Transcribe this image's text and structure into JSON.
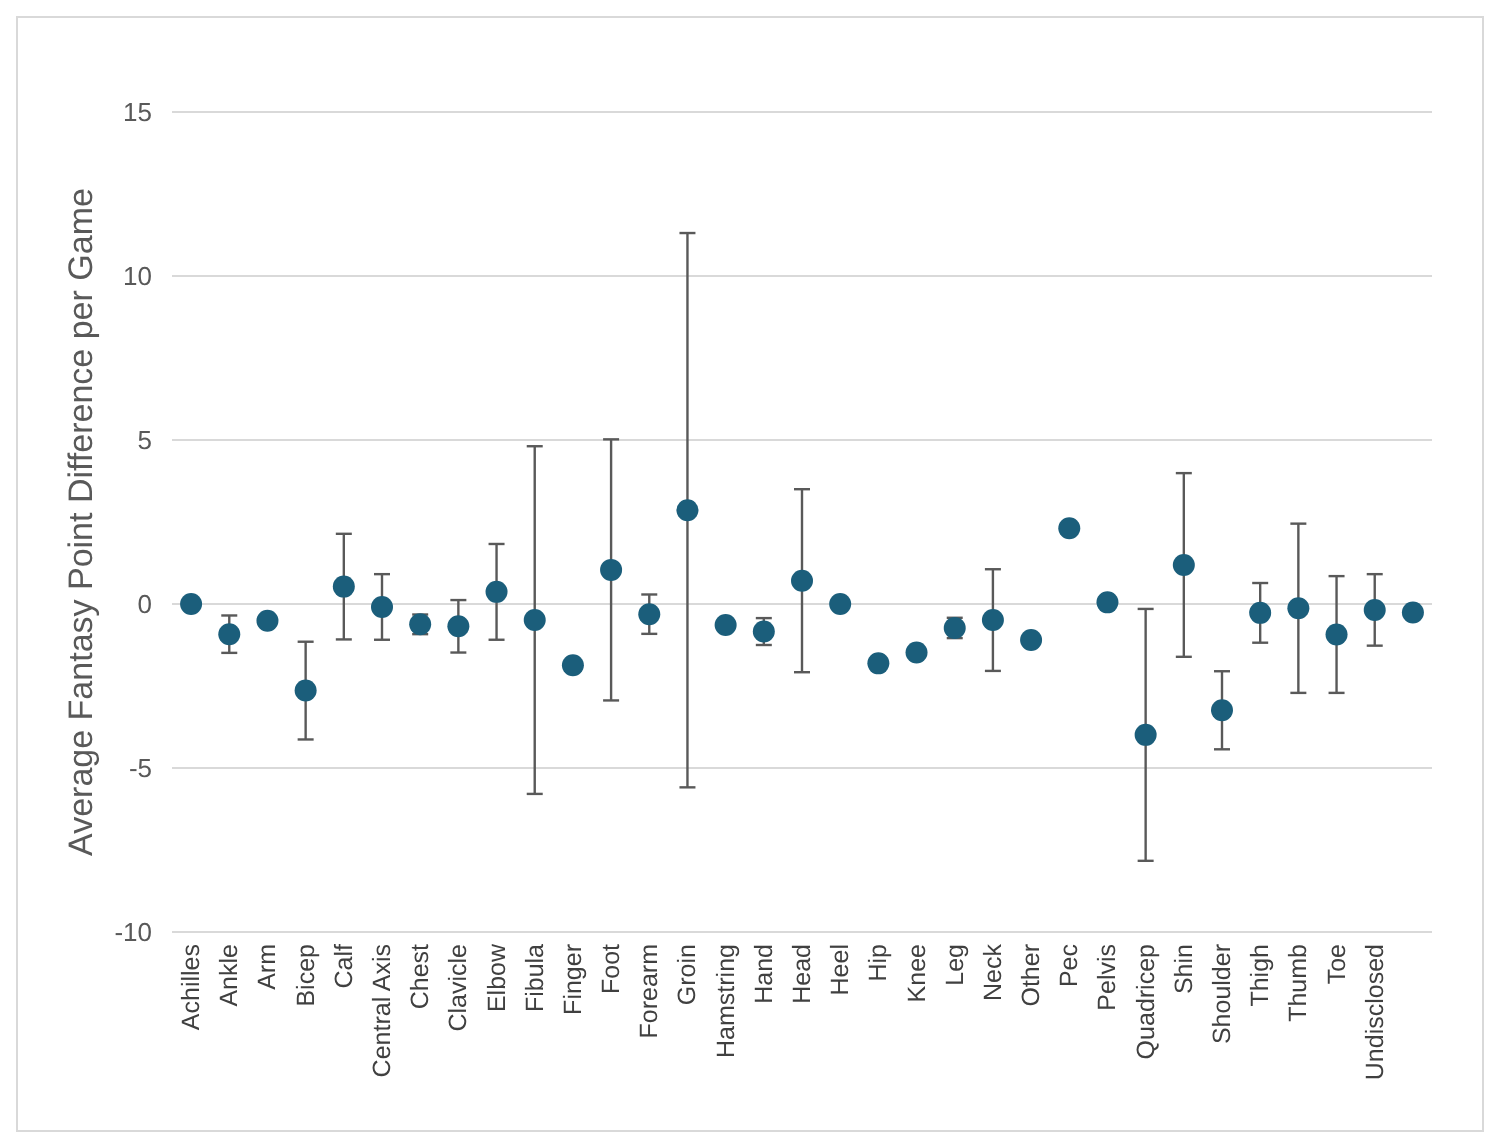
{
  "chart_data": {
    "type": "scatter",
    "ylabel": "Average Fantasy Point Difference per Game",
    "categories": [
      "Achilles",
      "Ankle",
      "Arm",
      "Bicep",
      "Calf",
      "Central Axis",
      "Chest",
      "Clavicle",
      "Elbow",
      "Fibula",
      "Finger",
      "Foot",
      "Forearm",
      "Groin",
      "Hamstring",
      "Hand",
      "Head",
      "Heel",
      "Hip",
      "Knee",
      "Leg",
      "Neck",
      "Other",
      "Pec",
      "Pelvis",
      "Quadricep",
      "Shin",
      "Shoulder",
      "Thigh",
      "Thumb",
      "Toe",
      "Undisclosed",
      null
    ],
    "values": [
      0,
      -0.92,
      -0.51,
      -2.64,
      0.53,
      -0.09,
      -0.62,
      -0.68,
      0.37,
      -0.49,
      -1.87,
      1.04,
      -0.31,
      2.86,
      -0.64,
      -0.84,
      0.71,
      0,
      -1.81,
      -1.48,
      -0.73,
      -0.49,
      -1.1,
      2.31,
      0.05,
      -3.99,
      1.19,
      -3.24,
      -0.27,
      -0.13,
      -0.93,
      -0.18,
      -0.26
    ],
    "errors": [
      null,
      0.57,
      null,
      1.49,
      1.61,
      1.0,
      0.3,
      0.8,
      1.46,
      5.3,
      null,
      3.98,
      0.6,
      8.45,
      null,
      0.41,
      2.79,
      null,
      null,
      null,
      0.31,
      1.55,
      null,
      null,
      null,
      3.84,
      2.8,
      1.19,
      0.91,
      2.58,
      1.78,
      1.09,
      null
    ],
    "color": "#1b5e7b",
    "marker": "circle",
    "grid": "y",
    "ylim": [
      -10,
      15
    ],
    "yticks": [
      -10,
      -5,
      0,
      5,
      10,
      15
    ]
  }
}
